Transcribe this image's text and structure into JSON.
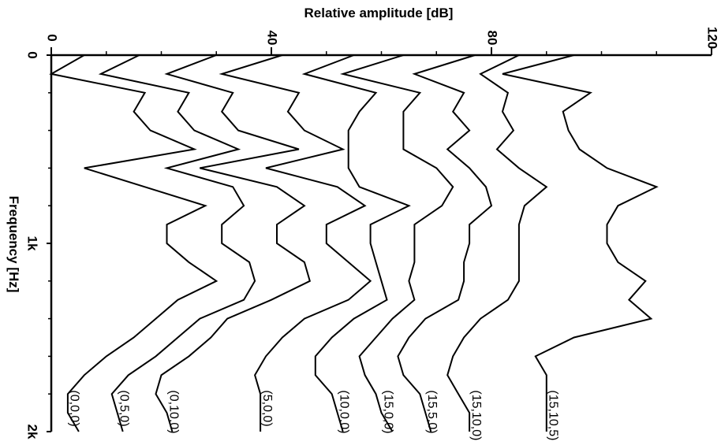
{
  "chart_data": {
    "type": "line",
    "xlabel": "Relative amplitude [dB]",
    "ylabel": "Frequency [Hz]",
    "xlim": [
      0,
      120
    ],
    "ylim": [
      0,
      2000
    ],
    "x_ticks": [
      0,
      40,
      80,
      120
    ],
    "x_tick_labels": [
      "0",
      "40",
      "80",
      "120"
    ],
    "y_ticks": [
      0,
      1000,
      2000
    ],
    "y_tick_labels": [
      "0",
      "1k",
      "2k"
    ],
    "grid": false,
    "frequency": [
      0,
      100,
      200,
      300,
      400,
      500,
      600,
      700,
      800,
      900,
      1000,
      1100,
      1200,
      1300,
      1400,
      1500,
      1600,
      1700,
      1800,
      1900,
      2000
    ],
    "series": [
      {
        "name": "(0,0,0)",
        "values": [
          6,
          0,
          17,
          15,
          18,
          26,
          6,
          17,
          28,
          21,
          21,
          25,
          30,
          23,
          19,
          15,
          10,
          6,
          3,
          3,
          5
        ]
      },
      {
        "name": "(0,5,0)",
        "values": [
          16,
          9,
          25,
          23,
          26,
          34,
          21,
          33,
          35,
          31,
          31,
          36,
          37,
          35,
          27,
          23,
          19,
          14,
          11,
          12,
          13
        ]
      },
      {
        "name": "(0,10,0)",
        "values": [
          30,
          21,
          33,
          31,
          34,
          45,
          27,
          41,
          46,
          41,
          41,
          46,
          47,
          40,
          32,
          29,
          25,
          20,
          19,
          21,
          22
        ]
      },
      {
        "name": "(5,0,0)",
        "values": [
          42,
          31,
          45,
          43,
          46,
          53,
          39,
          52,
          57,
          50,
          50,
          54,
          58,
          54,
          46,
          42,
          39,
          37,
          38,
          38,
          38
        ]
      },
      {
        "name": "(10,0,0)",
        "values": [
          55,
          46,
          59,
          56,
          54,
          54,
          54,
          56,
          65,
          58,
          58,
          59,
          60,
          61,
          55,
          51,
          48,
          48,
          51,
          52,
          53
        ]
      },
      {
        "name": "(15,0,0)",
        "values": [
          64,
          53,
          67,
          64,
          64,
          64,
          70,
          73,
          71,
          66,
          66,
          66,
          65,
          66,
          62,
          59,
          56,
          57,
          59,
          60,
          62
        ]
      },
      {
        "name": "(15,5,0)",
        "values": [
          77,
          66,
          75,
          73,
          76,
          72,
          76,
          79,
          80,
          76,
          76,
          75,
          75,
          74,
          68,
          65,
          63,
          64,
          67,
          68,
          69
        ]
      },
      {
        "name": "(15,10,0)",
        "values": [
          85,
          78,
          83,
          82,
          84,
          81,
          85,
          90,
          86,
          85,
          85,
          85,
          85,
          83,
          78,
          75,
          73,
          72,
          74,
          76,
          76
        ]
      },
      {
        "name": "(15,10,5)",
        "values": [
          95,
          82,
          98,
          93,
          94,
          96,
          101,
          110,
          103,
          101,
          101,
          103,
          108,
          105,
          109,
          95,
          88,
          90,
          90,
          90,
          90
        ]
      }
    ]
  }
}
